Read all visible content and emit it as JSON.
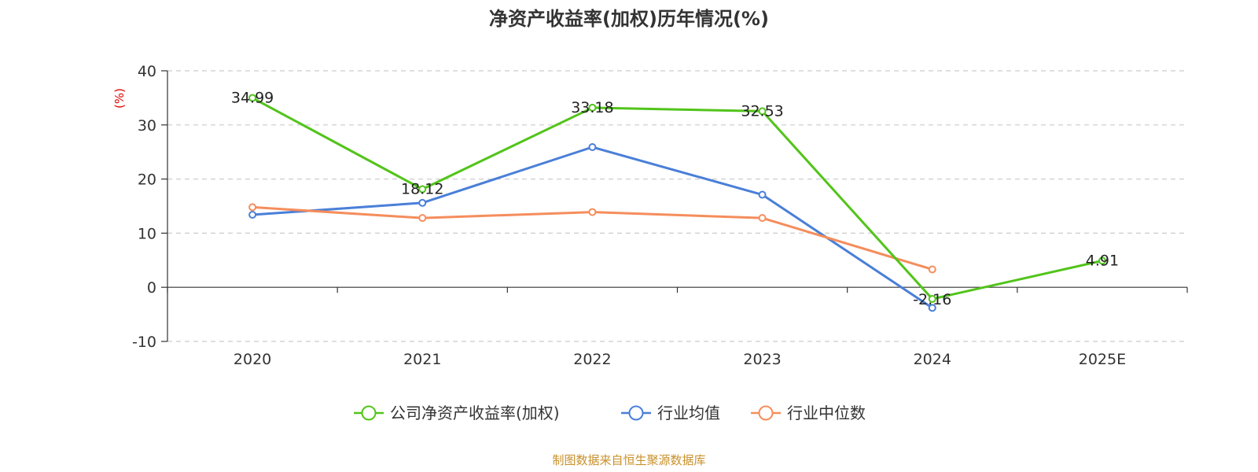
{
  "chart_data": {
    "type": "line",
    "title": "净资产收益率(加权)历年情况(%)",
    "ylabel": "(%)",
    "xlabel": "",
    "categories": [
      "2020",
      "2021",
      "2022",
      "2023",
      "2024",
      "2025E"
    ],
    "ylim": [
      -10,
      40
    ],
    "yticks": [
      "-10",
      "0",
      "10",
      "20",
      "30",
      "40"
    ],
    "grid": true,
    "legend_position": "bottom",
    "series": [
      {
        "name": "公司净资产收益率(加权)",
        "color": "#52c41a",
        "values": [
          34.99,
          18.12,
          33.18,
          32.53,
          -2.16,
          4.91
        ],
        "labels": [
          "34.99",
          "18.12",
          "33.18",
          "32.53",
          "-2.16",
          "4.91"
        ]
      },
      {
        "name": "行业均值",
        "color": "#4a7fd8",
        "values": [
          13.4,
          15.6,
          25.9,
          17.1,
          -3.8,
          null
        ]
      },
      {
        "name": "行业中位数",
        "color": "#f58d5c",
        "values": [
          14.8,
          12.8,
          13.9,
          12.8,
          3.3,
          null
        ]
      }
    ]
  },
  "source": "制图数据来自恒生聚源数据库",
  "colors": {
    "axis": "#333333",
    "grid": "#cccccc",
    "unit_label": "#e00000",
    "source_text": "#c8902a"
  }
}
